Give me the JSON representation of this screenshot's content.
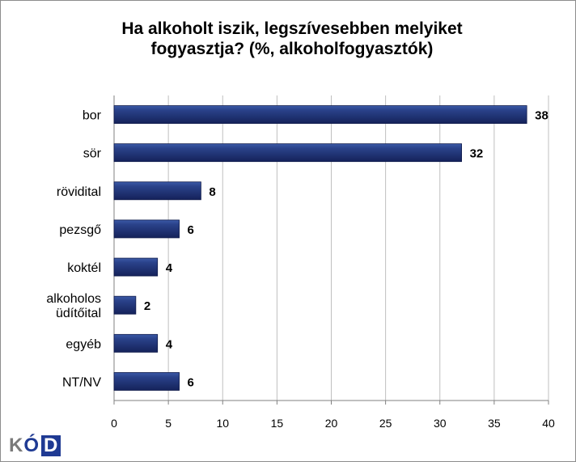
{
  "title": {
    "line1": "Ha alkoholt iszik, legszívesebben melyiket",
    "line2": "fogyasztja? (%, alkoholfogyasztók)"
  },
  "logo": {
    "k": "K",
    "o": "Ó",
    "d": "D"
  },
  "colors": {
    "bar": "#1e2f6e",
    "bar_light": "#3b5aa8",
    "grid": "#bfbfbf"
  },
  "chart_data": {
    "type": "bar",
    "orientation": "horizontal",
    "title": "Ha alkoholt iszik, legszívesebben melyiket fogyasztja? (%, alkoholfogyasztók)",
    "categories": [
      [
        "bor"
      ],
      [
        "sör"
      ],
      [
        "rövidital"
      ],
      [
        "pezsgő"
      ],
      [
        "koktél"
      ],
      [
        "alkoholos",
        "üdítőital"
      ],
      [
        "egyéb"
      ],
      [
        "NT/NV"
      ]
    ],
    "values": [
      38,
      32,
      8,
      6,
      4,
      2,
      4,
      6
    ],
    "xlim": [
      0,
      40
    ],
    "xticks": [
      0,
      5,
      10,
      15,
      20,
      25,
      30,
      35,
      40
    ],
    "grid": "vertical"
  }
}
